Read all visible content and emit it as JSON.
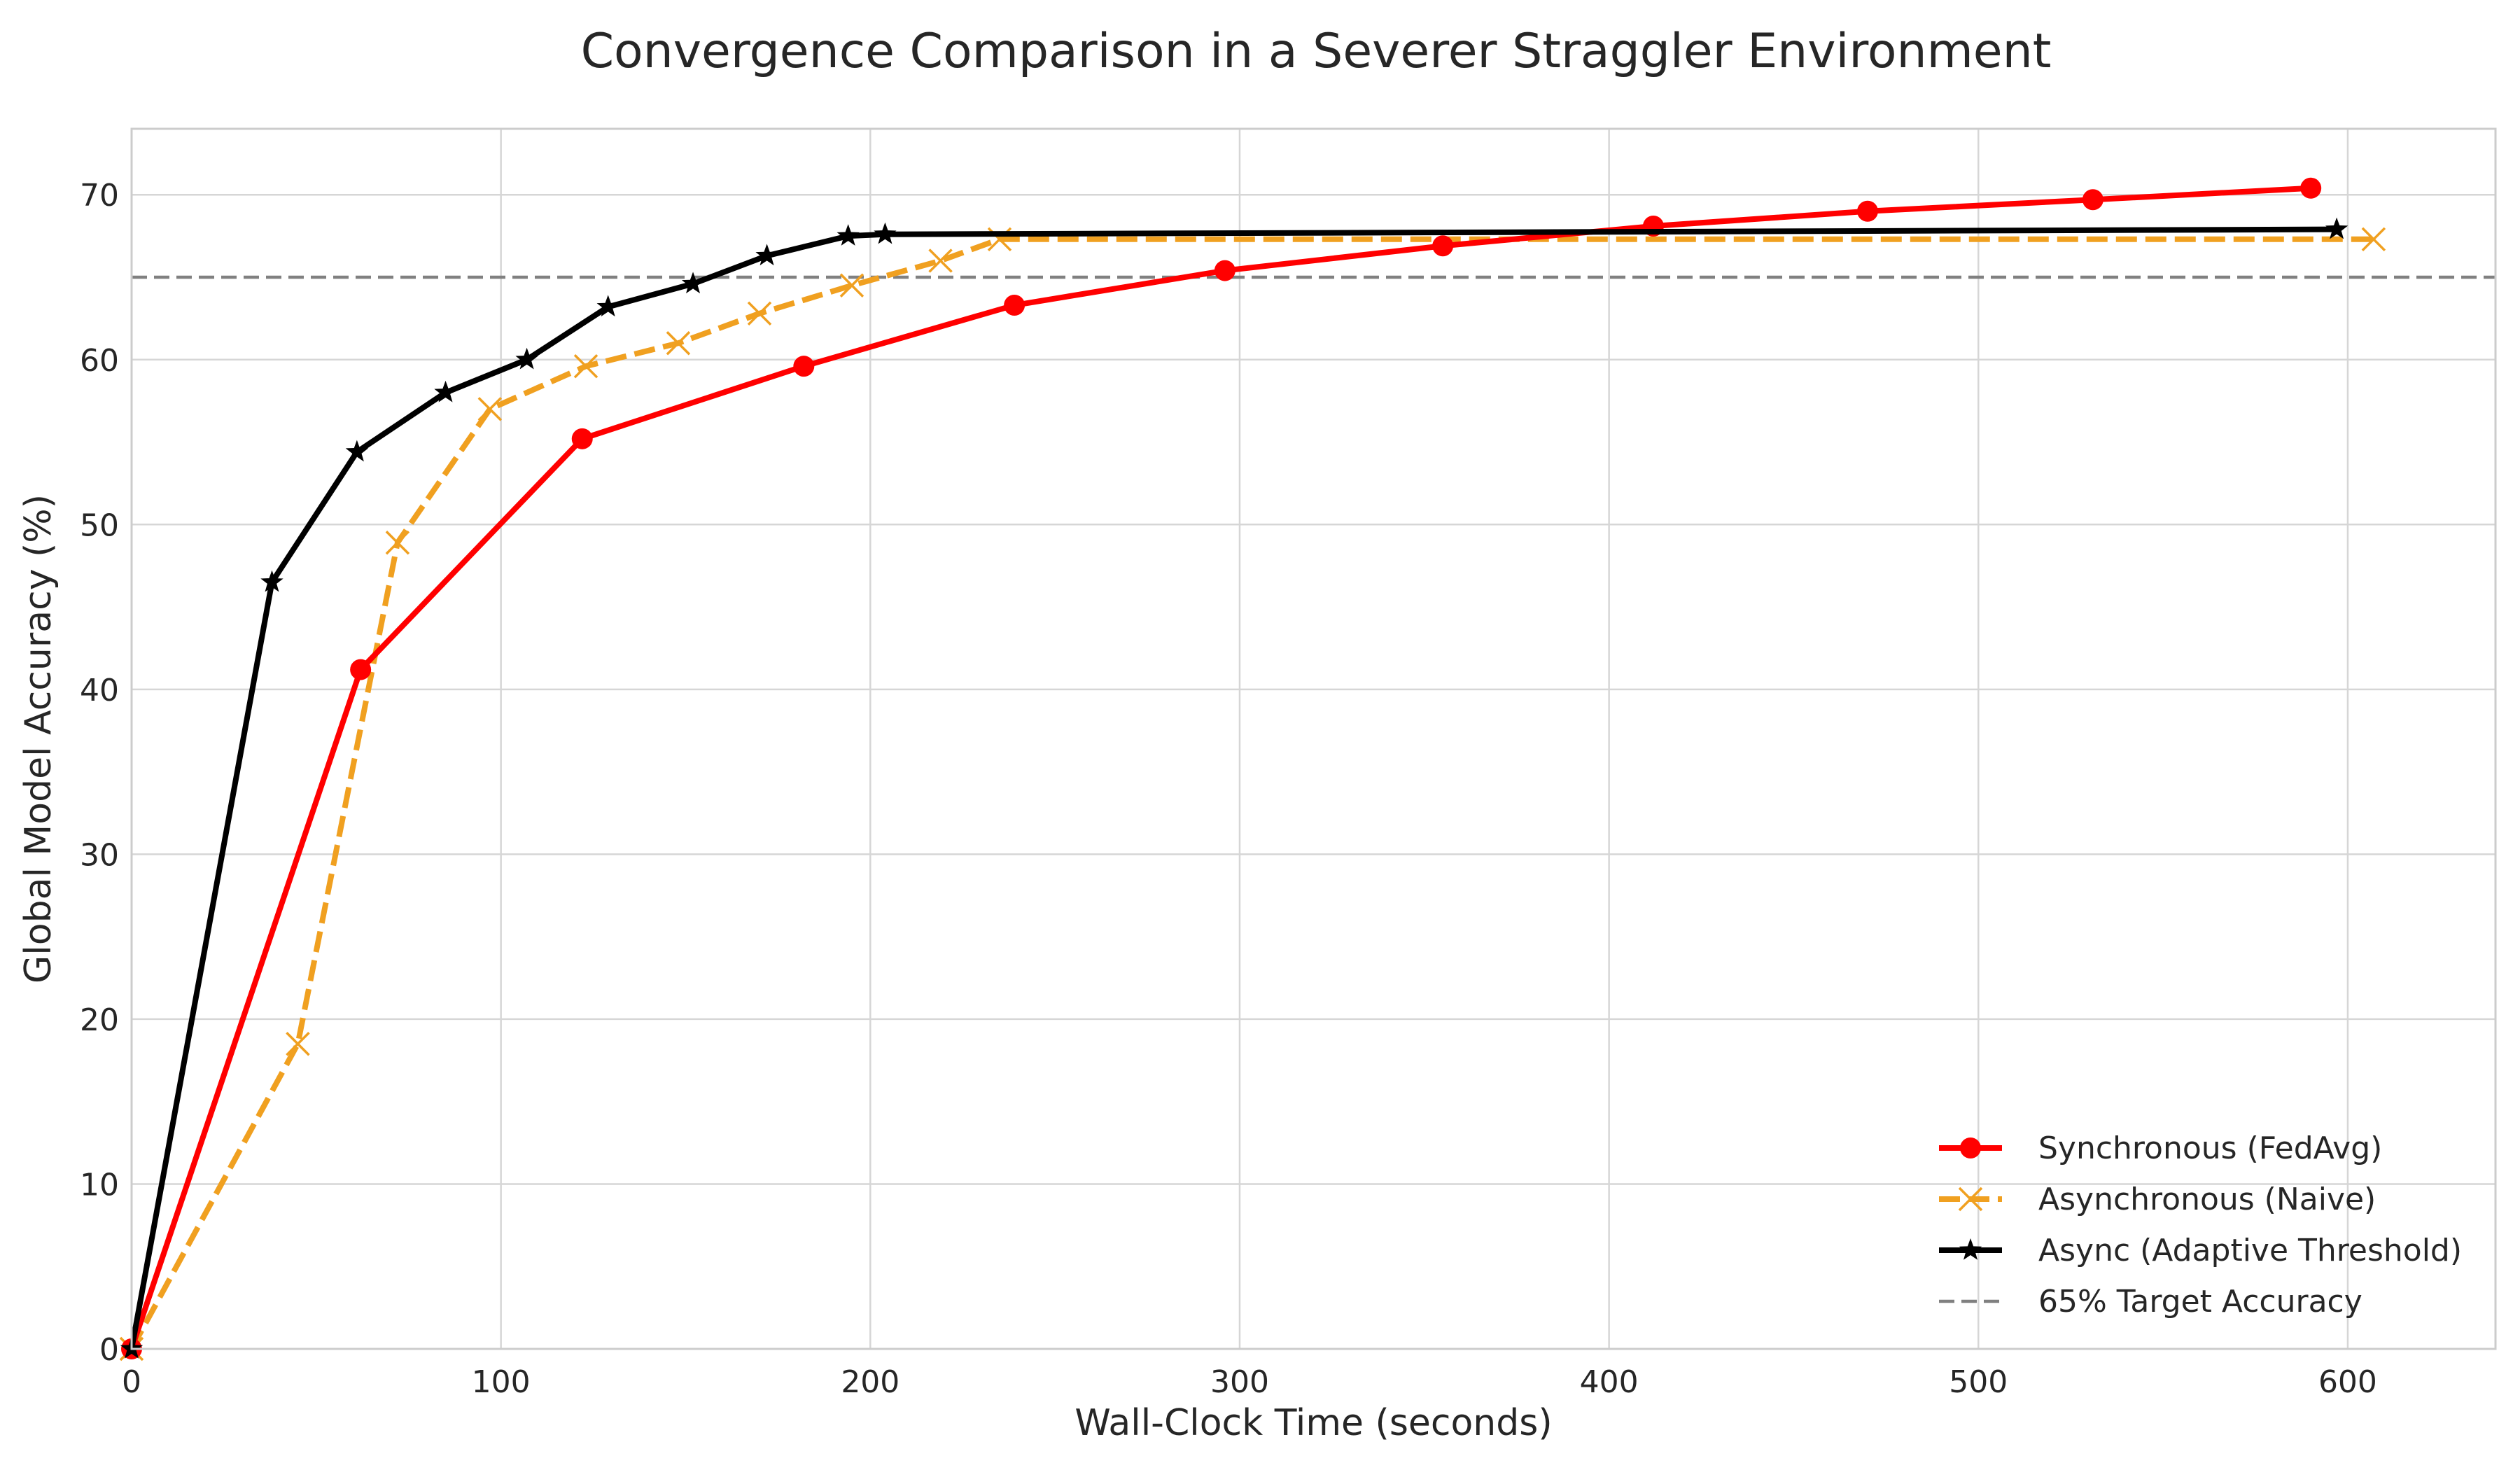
{
  "chart_data": {
    "type": "line",
    "title": "Convergence Comparison in a Severer Straggler Environment",
    "xlabel": "Wall-Clock Time (seconds)",
    "ylabel": "Global Model Accuracy (%)",
    "xlim": [
      0,
      640
    ],
    "ylim": [
      0,
      74
    ],
    "xticks": [
      0,
      100,
      200,
      300,
      400,
      500,
      600
    ],
    "yticks": [
      0,
      10,
      20,
      30,
      40,
      50,
      60,
      70
    ],
    "grid": true,
    "legend_position": "lower right",
    "series": [
      {
        "name": "Synchronous (FedAvg)",
        "color": "#ff0000",
        "line_style": "solid",
        "marker": "circle",
        "x": [
          0,
          62,
          122,
          182,
          239,
          296,
          355,
          412,
          470,
          531,
          590
        ],
        "y": [
          0,
          41.2,
          55.2,
          59.6,
          63.3,
          65.4,
          66.9,
          68.1,
          69.0,
          69.7,
          70.4
        ]
      },
      {
        "name": "Asynchronous (Naive)",
        "color": "#f0a020",
        "line_style": "dashed",
        "marker": "x",
        "x": [
          0,
          45,
          72,
          97,
          123,
          148,
          170,
          195,
          219,
          235,
          607
        ],
        "y": [
          0,
          18.5,
          48.9,
          57.0,
          59.6,
          61.0,
          62.8,
          64.5,
          66.0,
          67.3,
          67.3
        ]
      },
      {
        "name": "Async (Adaptive Threshold)",
        "color": "#000000",
        "line_style": "solid",
        "marker": "star",
        "x": [
          0,
          38,
          61,
          85,
          107,
          129,
          152,
          172,
          194,
          204,
          597
        ],
        "y": [
          0,
          46.5,
          54.4,
          58.0,
          60.0,
          63.2,
          64.6,
          66.3,
          67.5,
          67.6,
          67.9
        ]
      }
    ],
    "reference_lines": [
      {
        "name": "65% Target Accuracy",
        "y": 65,
        "color": "#808080",
        "line_style": "dashed"
      }
    ]
  }
}
